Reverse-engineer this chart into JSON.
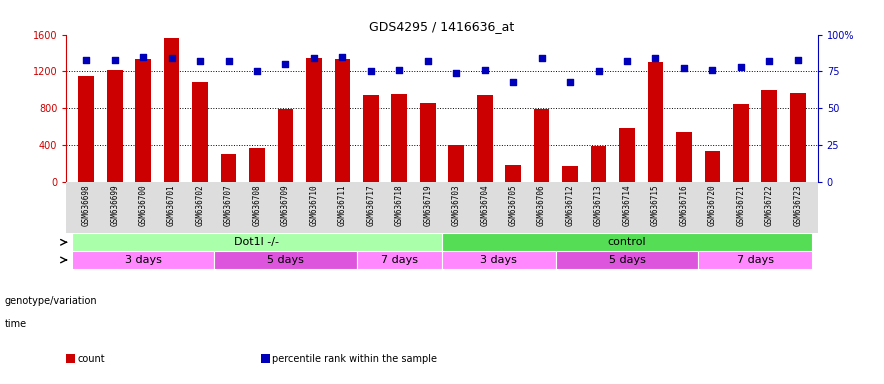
{
  "title": "GDS4295 / 1416636_at",
  "samples": [
    "GSM636698",
    "GSM636699",
    "GSM636700",
    "GSM636701",
    "GSM636702",
    "GSM636707",
    "GSM636708",
    "GSM636709",
    "GSM636710",
    "GSM636711",
    "GSM636717",
    "GSM636718",
    "GSM636719",
    "GSM636703",
    "GSM636704",
    "GSM636705",
    "GSM636706",
    "GSM636712",
    "GSM636713",
    "GSM636714",
    "GSM636715",
    "GSM636716",
    "GSM636720",
    "GSM636721",
    "GSM636722",
    "GSM636723"
  ],
  "counts": [
    1150,
    1220,
    1330,
    1560,
    1080,
    300,
    370,
    790,
    1340,
    1330,
    940,
    950,
    860,
    400,
    940,
    180,
    790,
    170,
    390,
    580,
    1300,
    540,
    340,
    850,
    1000,
    960
  ],
  "percentiles": [
    83,
    83,
    85,
    84,
    82,
    82,
    75,
    80,
    84,
    85,
    75,
    76,
    82,
    74,
    76,
    68,
    84,
    68,
    75,
    82,
    84,
    77,
    76,
    78,
    82,
    83
  ],
  "bar_color": "#cc0000",
  "dot_color": "#0000bb",
  "ylim_left": [
    0,
    1600
  ],
  "ylim_right": [
    0,
    100
  ],
  "yticks_left": [
    0,
    400,
    800,
    1200,
    1600
  ],
  "yticks_right": [
    0,
    25,
    50,
    75,
    100
  ],
  "ytick_labels_right": [
    "0",
    "25",
    "50",
    "75",
    "100%"
  ],
  "grid_values": [
    400,
    800,
    1200
  ],
  "genotype_groups": [
    {
      "label": "Dot1l -/-",
      "start": 0,
      "end": 13,
      "color": "#aaffaa"
    },
    {
      "label": "control",
      "start": 13,
      "end": 26,
      "color": "#55dd55"
    }
  ],
  "time_groups": [
    {
      "label": "3 days",
      "start": 0,
      "end": 5,
      "color": "#ff88ff"
    },
    {
      "label": "5 days",
      "start": 5,
      "end": 10,
      "color": "#dd55dd"
    },
    {
      "label": "7 days",
      "start": 10,
      "end": 13,
      "color": "#ff88ff"
    },
    {
      "label": "3 days",
      "start": 13,
      "end": 17,
      "color": "#ff88ff"
    },
    {
      "label": "5 days",
      "start": 17,
      "end": 22,
      "color": "#dd55dd"
    },
    {
      "label": "7 days",
      "start": 22,
      "end": 26,
      "color": "#ff88ff"
    }
  ],
  "legend_items": [
    {
      "label": "count",
      "color": "#cc0000"
    },
    {
      "label": "percentile rank within the sample",
      "color": "#0000bb"
    }
  ],
  "background_color": "#ffffff",
  "xtick_bg": "#dddddd",
  "bar_width": 0.55
}
